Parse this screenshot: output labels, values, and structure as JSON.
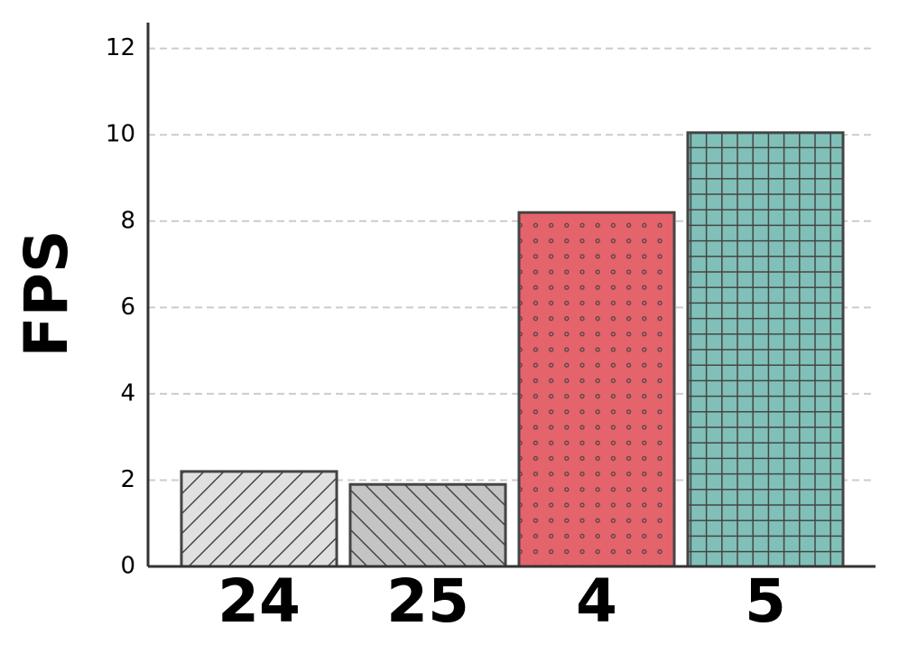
{
  "chart_data": {
    "type": "bar",
    "y_label": "FPS",
    "categories": [
      "24",
      "25",
      "4",
      "5"
    ],
    "values": [
      2.2,
      1.9,
      8.2,
      10.05
    ],
    "colors": [
      "#e0e0e0",
      "#c4c4c4",
      "#e5636a",
      "#80c0b8"
    ],
    "hatches": [
      "/",
      "\\",
      ".",
      "+"
    ],
    "ylim": [
      0,
      12.6
    ],
    "yticks": [
      0,
      2,
      4,
      6,
      8,
      10,
      12
    ],
    "grid": true
  }
}
